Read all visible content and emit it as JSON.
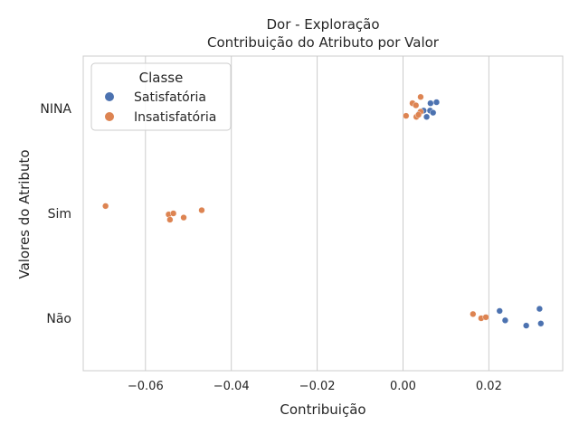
{
  "chart_data": {
    "type": "scatter",
    "title": "Dor - Exploração",
    "subtitle": "Contribuição do Atributo por Valor",
    "xlabel": "Contribuição",
    "ylabel": "Valores do Atributo",
    "xlim": [
      -0.0745,
      0.0372
    ],
    "x_ticks": [
      -0.06,
      -0.04,
      -0.02,
      0.0,
      0.02
    ],
    "x_tick_labels": [
      "−0.06",
      "−0.04",
      "−0.02",
      "0.00",
      "0.02"
    ],
    "categories": [
      "NINA",
      "Sim",
      "Não"
    ],
    "grid": "vertical",
    "legend": {
      "title": "Classe",
      "position": "top-left",
      "entries": [
        {
          "label": "Satisfatória",
          "color": "#4c72b0"
        },
        {
          "label": "Insatisfatória",
          "color": "#dd8452"
        }
      ]
    },
    "series": [
      {
        "name": "Satisfatória",
        "color": "#4c72b0",
        "points": [
          {
            "x": 0.0063,
            "category": "NINA",
            "jitter": 0.02
          },
          {
            "x": 0.0064,
            "category": "NINA",
            "jitter": -0.05
          },
          {
            "x": 0.0078,
            "category": "NINA",
            "jitter": -0.06
          },
          {
            "x": 0.0055,
            "category": "NINA",
            "jitter": 0.08
          },
          {
            "x": 0.007,
            "category": "NINA",
            "jitter": 0.04
          },
          {
            "x": 0.0048,
            "category": "NINA",
            "jitter": 0.02
          },
          {
            "x": 0.0039,
            "category": "NINA",
            "jitter": 0.04
          },
          {
            "x": 0.0225,
            "category": "Não",
            "jitter": -0.07
          },
          {
            "x": 0.0318,
            "category": "Não",
            "jitter": -0.09
          },
          {
            "x": 0.0238,
            "category": "Não",
            "jitter": 0.02
          },
          {
            "x": 0.0287,
            "category": "Não",
            "jitter": 0.07
          },
          {
            "x": 0.0321,
            "category": "Não",
            "jitter": 0.05
          }
        ]
      },
      {
        "name": "Insatisfatória",
        "color": "#dd8452",
        "points": [
          {
            "x": 0.0041,
            "category": "NINA",
            "jitter": -0.11
          },
          {
            "x": 0.0022,
            "category": "NINA",
            "jitter": -0.05
          },
          {
            "x": 0.003,
            "category": "NINA",
            "jitter": -0.03
          },
          {
            "x": 0.0041,
            "category": "NINA",
            "jitter": 0.03
          },
          {
            "x": 0.0007,
            "category": "NINA",
            "jitter": 0.07
          },
          {
            "x": 0.0031,
            "category": "NINA",
            "jitter": 0.08
          },
          {
            "x": 0.0036,
            "category": "NINA",
            "jitter": 0.06
          },
          {
            "x": -0.0693,
            "category": "Sim",
            "jitter": -0.07
          },
          {
            "x": -0.0546,
            "category": "Sim",
            "jitter": 0.01
          },
          {
            "x": -0.0535,
            "category": "Sim",
            "jitter": 0.0
          },
          {
            "x": -0.0469,
            "category": "Sim",
            "jitter": -0.03
          },
          {
            "x": -0.0511,
            "category": "Sim",
            "jitter": 0.04
          },
          {
            "x": -0.0543,
            "category": "Sim",
            "jitter": 0.06
          },
          {
            "x": 0.0163,
            "category": "Não",
            "jitter": -0.04
          },
          {
            "x": 0.0182,
            "category": "Não",
            "jitter": 0.0
          },
          {
            "x": 0.0193,
            "category": "Não",
            "jitter": -0.01
          }
        ]
      }
    ]
  }
}
